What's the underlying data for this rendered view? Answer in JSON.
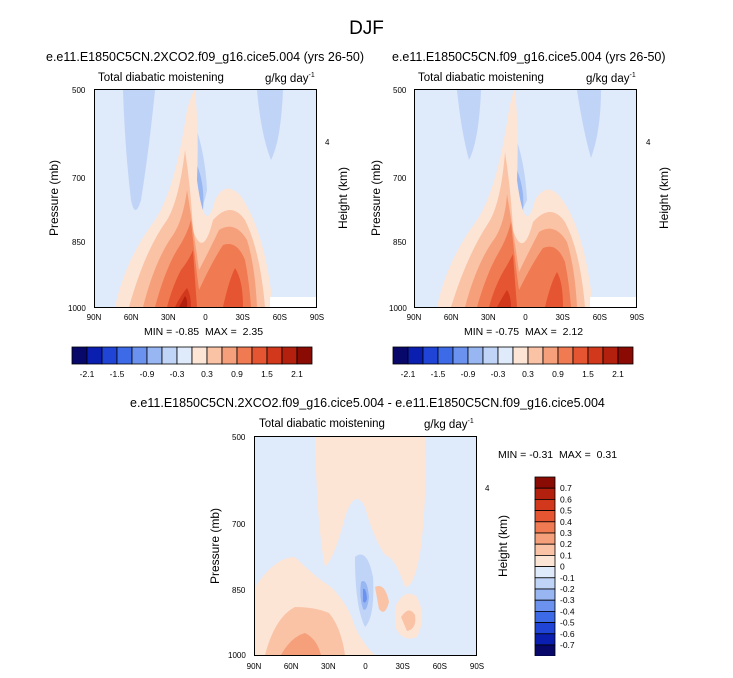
{
  "page_title": "DJF",
  "colors": {
    "neg": [
      "#08086b",
      "#0a1fb0",
      "#1f44d6",
      "#3d6ae6",
      "#6b92ee",
      "#97b6f2",
      "#c0d4f7",
      "#dfeafb"
    ],
    "pos": [
      "#fde5d6",
      "#fac3a6",
      "#f6a07b",
      "#f07a52",
      "#e55532",
      "#d1381c",
      "#b3200d",
      "#8a0b03"
    ]
  },
  "charts": {
    "top_left": {
      "title": "e.e11.E1850C5CN.2XCO2.f09_g16.cice5.004 (yrs 26-50)",
      "left_string": "Total diabatic moistening",
      "right_string": "g/kg day",
      "right_string_exp": "-1",
      "ylabel": "Pressure (mb)",
      "y2label": "Height (km)",
      "yticks": [
        "500",
        "700",
        "850",
        "1000"
      ],
      "y2ticks": [
        "4"
      ],
      "xticks": [
        "90N",
        "60N",
        "30N",
        "0",
        "30S",
        "60S",
        "90S"
      ],
      "min_label": "MIN =",
      "min": "-0.85",
      "max_label": "MAX =",
      "max": "2.35"
    },
    "top_right": {
      "title": "e.e11.E1850C5CN.f09_g16.cice5.004 (yrs 26-50)",
      "left_string": "Total diabatic moistening",
      "right_string": "g/kg day",
      "right_string_exp": "-1",
      "ylabel": "Pressure (mb)",
      "y2label": "Height (km)",
      "yticks": [
        "500",
        "700",
        "850",
        "1000"
      ],
      "y2ticks": [
        "4"
      ],
      "xticks": [
        "90N",
        "60N",
        "30N",
        "0",
        "30S",
        "60S",
        "90S"
      ],
      "min_label": "MIN =",
      "min": "-0.75",
      "max_label": "MAX =",
      "max": "2.12"
    },
    "bottom": {
      "title": "e.e11.E1850C5CN.2XCO2.f09_g16.cice5.004 - e.e11.E1850C5CN.f09_g16.cice5.004",
      "left_string": "Total diabatic moistening",
      "right_string": "g/kg day",
      "right_string_exp": "-1",
      "ylabel": "Pressure (mb)",
      "y2label": "Height (km)",
      "yticks": [
        "500",
        "700",
        "850",
        "1000"
      ],
      "y2ticks": [
        "4"
      ],
      "xticks": [
        "90N",
        "60N",
        "30N",
        "0",
        "30S",
        "60S",
        "90S"
      ],
      "min_label": "MIN =",
      "min": "-0.31",
      "max_label": "MAX =",
      "max": "0.31"
    }
  },
  "labelbar_top": {
    "labels": [
      "-2.1",
      "-1.5",
      "-0.9",
      "-0.3",
      "0.3",
      "0.9",
      "1.5",
      "2.1"
    ]
  },
  "labelbar_bottom": {
    "labels": [
      "0.7",
      "0.6",
      "0.5",
      "0.4",
      "0.3",
      "0.2",
      "0.1",
      "0",
      "-0.1",
      "-0.2",
      "-0.3",
      "-0.4",
      "-0.5",
      "-0.6",
      "-0.7"
    ]
  },
  "chart_data": [
    {
      "type": "heatmap",
      "title": "e.e11.E1850C5CN.2XCO2.f09_g16.cice5.004 (yrs 26-50)",
      "xlabel": "",
      "ylabel": "Pressure (mb)",
      "y2label": "Height (km)",
      "x_ticks": [
        "90N",
        "60N",
        "30N",
        "0",
        "30S",
        "60S",
        "90S"
      ],
      "y_ticks": [
        500,
        700,
        850,
        1000
      ],
      "ylim": [
        1000,
        500
      ],
      "min": -0.85,
      "max": 2.35,
      "contour_levels": [
        -2.1,
        -1.8,
        -1.5,
        -1.2,
        -0.9,
        -0.6,
        -0.3,
        0,
        0.3,
        0.6,
        0.9,
        1.2,
        1.5,
        1.8,
        2.1
      ]
    },
    {
      "type": "heatmap",
      "title": "e.e11.E1850C5CN.f09_g16.cice5.004 (yrs 26-50)",
      "xlabel": "",
      "ylabel": "Pressure (mb)",
      "y2label": "Height (km)",
      "x_ticks": [
        "90N",
        "60N",
        "30N",
        "0",
        "30S",
        "60S",
        "90S"
      ],
      "y_ticks": [
        500,
        700,
        850,
        1000
      ],
      "ylim": [
        1000,
        500
      ],
      "min": -0.75,
      "max": 2.12,
      "contour_levels": [
        -2.1,
        -1.8,
        -1.5,
        -1.2,
        -0.9,
        -0.6,
        -0.3,
        0,
        0.3,
        0.6,
        0.9,
        1.2,
        1.5,
        1.8,
        2.1
      ]
    },
    {
      "type": "heatmap",
      "title": "e.e11.E1850C5CN.2XCO2.f09_g16.cice5.004 - e.e11.E1850C5CN.f09_g16.cice5.004",
      "xlabel": "",
      "ylabel": "Pressure (mb)",
      "y2label": "Height (km)",
      "x_ticks": [
        "90N",
        "60N",
        "30N",
        "0",
        "30S",
        "60S",
        "90S"
      ],
      "y_ticks": [
        500,
        700,
        850,
        1000
      ],
      "ylim": [
        1000,
        500
      ],
      "min": -0.31,
      "max": 0.31,
      "contour_levels": [
        -0.7,
        -0.6,
        -0.5,
        -0.4,
        -0.3,
        -0.2,
        -0.1,
        0,
        0.1,
        0.2,
        0.3,
        0.4,
        0.5,
        0.6,
        0.7
      ]
    }
  ]
}
